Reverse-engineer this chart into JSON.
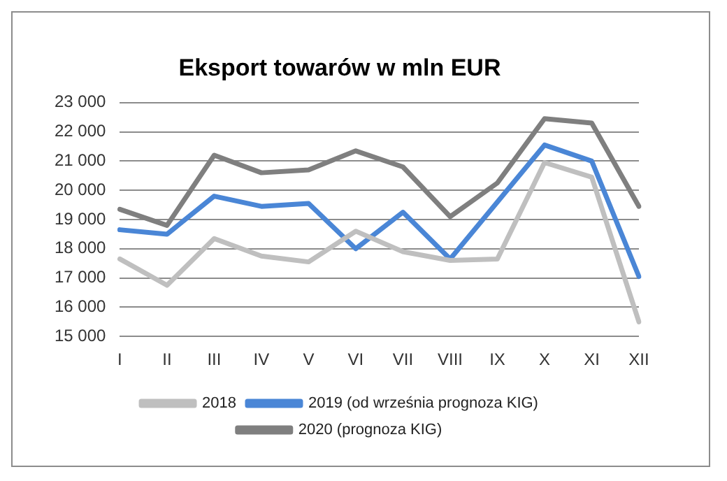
{
  "chart_data": {
    "type": "line",
    "title": "Eksport towarów w mln EUR",
    "categories": [
      "I",
      "II",
      "III",
      "IV",
      "V",
      "VI",
      "VII",
      "VIII",
      "IX",
      "X",
      "XI",
      "XII"
    ],
    "series": [
      {
        "name": "2018",
        "color": "#bfbfbf",
        "values": [
          17650,
          16750,
          18350,
          17750,
          17550,
          18600,
          17900,
          17600,
          17650,
          20950,
          20450,
          15500
        ]
      },
      {
        "name": "2019 (od września prognoza KIG)",
        "color": "#4a86d6",
        "values": [
          18650,
          18500,
          19800,
          19450,
          19550,
          18000,
          19250,
          17650,
          19600,
          21550,
          21000,
          17050
        ]
      },
      {
        "name": "2020 (prognoza KIG)",
        "color": "#7f7f7f",
        "values": [
          19350,
          18800,
          21200,
          20600,
          20700,
          21350,
          20800,
          19100,
          20250,
          22450,
          22300,
          19450
        ]
      }
    ],
    "ylim": [
      15000,
      23000
    ],
    "yticks": [
      {
        "value": 15000,
        "label": "15 000"
      },
      {
        "value": 16000,
        "label": "16 000"
      },
      {
        "value": 17000,
        "label": "17 000"
      },
      {
        "value": 18000,
        "label": "18 000"
      },
      {
        "value": 19000,
        "label": "19 000"
      },
      {
        "value": 20000,
        "label": "20 000"
      },
      {
        "value": 21000,
        "label": "21 000"
      },
      {
        "value": 22000,
        "label": "22 000"
      },
      {
        "value": 23000,
        "label": "23 000"
      }
    ],
    "grid": "y",
    "legend": "bottom",
    "marker": "none",
    "line_style": "solid"
  }
}
